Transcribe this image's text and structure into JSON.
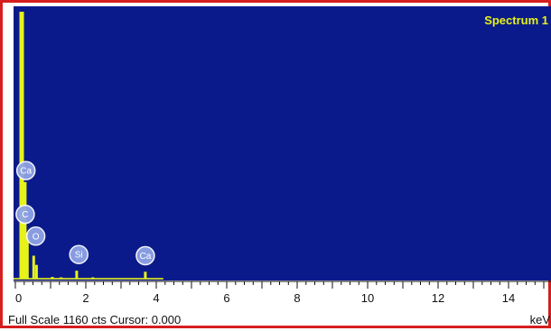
{
  "chart_data": {
    "type": "bar",
    "title": "Spectrum 1",
    "xlabel": "keV",
    "ylabel": "",
    "xlim": [
      0,
      15
    ],
    "ylim": [
      0,
      1160
    ],
    "x_ticks": [
      0,
      2,
      4,
      6,
      8,
      10,
      12,
      14
    ],
    "x_tick_labels": [
      "0",
      "2",
      "4",
      "6",
      "8",
      "10",
      "12",
      "14"
    ],
    "peaks": [
      {
        "x": 0.18,
        "y": 1160
      },
      {
        "x": 0.28,
        "y": 420
      },
      {
        "x": 0.34,
        "y": 200
      },
      {
        "x": 0.52,
        "y": 100
      },
      {
        "x": 0.6,
        "y": 60
      },
      {
        "x": 1.05,
        "y": 8
      },
      {
        "x": 1.3,
        "y": 6
      },
      {
        "x": 1.74,
        "y": 35
      },
      {
        "x": 2.2,
        "y": 6
      },
      {
        "x": 3.69,
        "y": 30
      }
    ],
    "element_labels": [
      {
        "text": "Ca",
        "x": 0.3,
        "y": 470
      },
      {
        "text": "C",
        "x": 0.28,
        "y": 280
      },
      {
        "text": "O",
        "x": 0.58,
        "y": 185
      },
      {
        "text": "Si",
        "x": 1.8,
        "y": 105
      },
      {
        "text": "Ca",
        "x": 3.69,
        "y": 100
      }
    ],
    "background_color": "#0b1a8a",
    "signal_color": "#e6f21a"
  },
  "status_bar": {
    "text": "Full Scale 1160 cts Cursor: 0.000"
  }
}
